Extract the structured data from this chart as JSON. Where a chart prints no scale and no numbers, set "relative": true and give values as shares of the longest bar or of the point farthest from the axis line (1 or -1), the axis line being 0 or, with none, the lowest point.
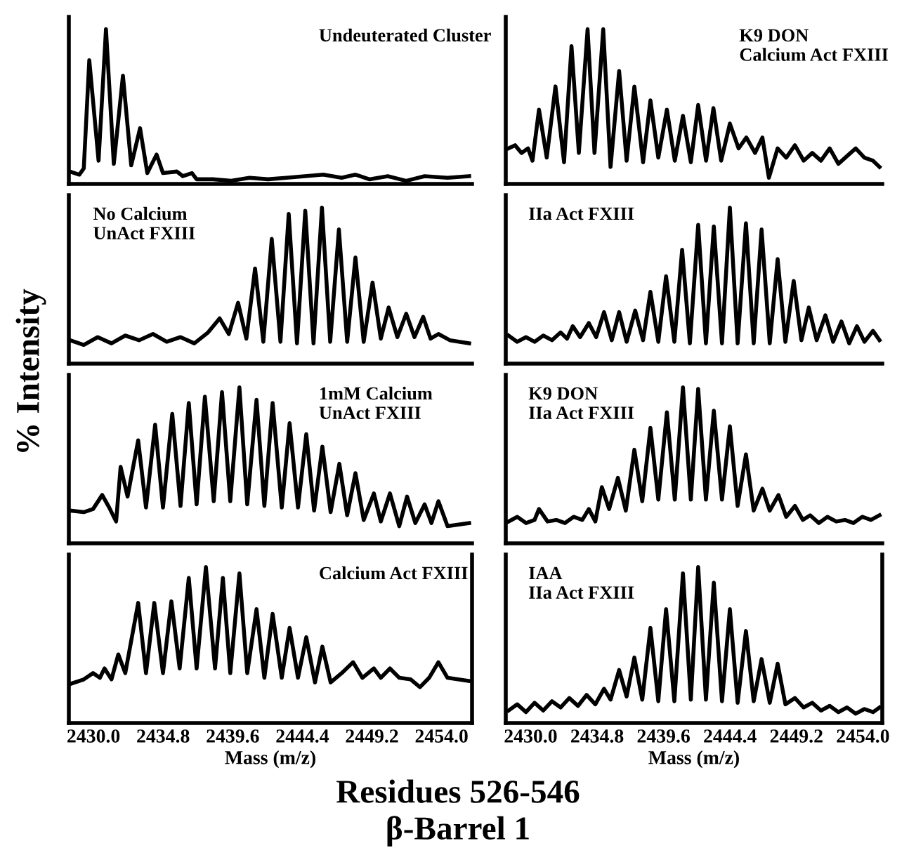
{
  "chart_data": [
    {
      "type": "line",
      "relative": true,
      "title": "Residues 526-546",
      "subtitle": "β-Barrel 1",
      "ylabel": "% Intensity",
      "annotations": [
        "Undeuterated Cluster"
      ],
      "tick_labels": false,
      "color": "#000000",
      "xlim": [
        2428.3,
        2456.1
      ],
      "x": [
        2428.38,
        2429.02,
        2429.33,
        2429.71,
        2430.35,
        2430.86,
        2431.4,
        2432.03,
        2432.6,
        2433.21,
        2433.71,
        2434.35,
        2434.79,
        2435.75,
        2436.16,
        2436.79,
        2437.11,
        2438.22,
        2439.49,
        2440.76,
        2442.03,
        2443.3,
        2444.57,
        2445.84,
        2447.11,
        2448.06,
        2449.02,
        2450.29,
        2451.56,
        2452.83,
        2454.41,
        2455.9
      ],
      "values": [
        0.08,
        0.06,
        0.1,
        0.8,
        0.15,
        1.0,
        0.13,
        0.7,
        0.12,
        0.36,
        0.07,
        0.19,
        0.07,
        0.08,
        0.05,
        0.07,
        0.03,
        0.03,
        0.02,
        0.04,
        0.03,
        0.04,
        0.05,
        0.06,
        0.04,
        0.06,
        0.03,
        0.05,
        0.02,
        0.05,
        0.04,
        0.05
      ]
    },
    {
      "type": "line",
      "relative": true,
      "annotations": [
        "K9 DON\nCalcium Act FXIII"
      ],
      "tick_labels": false,
      "color": "#000000",
      "xlim": [
        2428.2,
        2455.4
      ],
      "x": [
        2428.4,
        2428.87,
        2429.34,
        2429.81,
        2430.13,
        2430.6,
        2431.16,
        2431.79,
        2432.41,
        2432.95,
        2433.48,
        2434.11,
        2434.61,
        2435.24,
        2435.77,
        2436.39,
        2436.93,
        2437.49,
        2438.12,
        2438.65,
        2439.22,
        2439.84,
        2440.41,
        2441.0,
        2441.57,
        2442.1,
        2442.67,
        2443.2,
        2443.76,
        2444.39,
        2445.02,
        2445.58,
        2446.21,
        2446.74,
        2447.21,
        2447.84,
        2448.46,
        2449.09,
        2449.72,
        2450.34,
        2450.97,
        2451.6,
        2452.23,
        2452.85,
        2453.48,
        2454.11,
        2454.73,
        2455.2
      ],
      "values": [
        0.23,
        0.25,
        0.2,
        0.23,
        0.15,
        0.48,
        0.17,
        0.63,
        0.14,
        0.89,
        0.2,
        1.0,
        0.2,
        1.0,
        0.11,
        0.73,
        0.15,
        0.63,
        0.14,
        0.54,
        0.17,
        0.48,
        0.15,
        0.44,
        0.14,
        0.51,
        0.15,
        0.49,
        0.15,
        0.39,
        0.23,
        0.3,
        0.2,
        0.3,
        0.04,
        0.23,
        0.17,
        0.25,
        0.15,
        0.2,
        0.15,
        0.23,
        0.13,
        0.18,
        0.23,
        0.17,
        0.15,
        0.11
      ]
    },
    {
      "type": "line",
      "relative": true,
      "annotations": [
        "No Calcium\nUnAct FXIII"
      ],
      "tick_labels": false,
      "color": "#000000",
      "xlim": [
        2428.3,
        2456.1
      ],
      "x": [
        2428.38,
        2429.33,
        2430.29,
        2431.24,
        2432.19,
        2433.14,
        2434.1,
        2435.05,
        2436.0,
        2436.95,
        2437.9,
        2438.7,
        2439.33,
        2439.97,
        2440.54,
        2441.14,
        2441.71,
        2442.29,
        2442.89,
        2443.46,
        2444.03,
        2444.6,
        2445.17,
        2445.75,
        2446.32,
        2446.92,
        2447.49,
        2448.06,
        2448.63,
        2449.24,
        2449.81,
        2450.35,
        2450.95,
        2451.56,
        2452.13,
        2452.73,
        2453.24,
        2453.78,
        2454.57,
        2455.9
      ],
      "values": [
        0.15,
        0.12,
        0.17,
        0.13,
        0.18,
        0.15,
        0.19,
        0.14,
        0.17,
        0.13,
        0.2,
        0.29,
        0.19,
        0.39,
        0.16,
        0.61,
        0.14,
        0.8,
        0.14,
        0.96,
        0.13,
        0.98,
        0.13,
        1.0,
        0.14,
        0.86,
        0.14,
        0.68,
        0.14,
        0.52,
        0.16,
        0.36,
        0.17,
        0.32,
        0.17,
        0.3,
        0.16,
        0.19,
        0.15,
        0.13
      ]
    },
    {
      "type": "line",
      "relative": true,
      "annotations": [
        "IIa Act FXIII"
      ],
      "tick_labels": false,
      "color": "#000000",
      "xlim": [
        2428.2,
        2455.4
      ],
      "x": [
        2428.4,
        2429.03,
        2429.66,
        2430.28,
        2430.91,
        2431.54,
        2432.16,
        2432.63,
        2433.04,
        2433.57,
        2434.2,
        2434.73,
        2435.3,
        2435.86,
        2436.39,
        2436.93,
        2437.55,
        2438.12,
        2438.65,
        2439.22,
        2439.78,
        2440.38,
        2440.94,
        2441.5,
        2442.1,
        2442.66,
        2443.23,
        2443.82,
        2444.39,
        2444.95,
        2445.55,
        2446.11,
        2446.68,
        2447.27,
        2447.84,
        2448.4,
        2449.0,
        2449.56,
        2450.09,
        2450.66,
        2451.29,
        2451.85,
        2452.45,
        2453.01,
        2453.57,
        2454.11,
        2454.73,
        2455.2
      ],
      "values": [
        0.18,
        0.14,
        0.17,
        0.14,
        0.18,
        0.15,
        0.2,
        0.16,
        0.24,
        0.17,
        0.26,
        0.17,
        0.33,
        0.15,
        0.33,
        0.14,
        0.34,
        0.15,
        0.46,
        0.14,
        0.56,
        0.14,
        0.73,
        0.13,
        0.89,
        0.13,
        0.88,
        0.13,
        1.0,
        0.13,
        0.9,
        0.13,
        0.86,
        0.13,
        0.67,
        0.14,
        0.53,
        0.15,
        0.36,
        0.15,
        0.31,
        0.14,
        0.27,
        0.13,
        0.24,
        0.14,
        0.21,
        0.15
      ]
    },
    {
      "type": "line",
      "relative": true,
      "annotations": [
        "1mM Calcium\nUnAct FXIII"
      ],
      "tick_labels": false,
      "color": "#000000",
      "xlim": [
        2428.3,
        2456.1
      ],
      "x": [
        2428.38,
        2429.33,
        2429.97,
        2430.6,
        2431.08,
        2431.56,
        2431.87,
        2432.35,
        2433.08,
        2433.62,
        2434.25,
        2434.79,
        2435.43,
        2436.0,
        2436.57,
        2437.11,
        2437.68,
        2438.29,
        2438.86,
        2439.43,
        2440.06,
        2440.6,
        2441.24,
        2441.78,
        2442.35,
        2442.98,
        2443.52,
        2444.1,
        2444.67,
        2445.21,
        2445.78,
        2446.35,
        2446.95,
        2447.49,
        2448.06,
        2448.63,
        2449.33,
        2449.81,
        2450.44,
        2451.08,
        2451.62,
        2452.19,
        2452.83,
        2453.3,
        2453.78,
        2454.41,
        2455.9
      ],
      "values": [
        0.21,
        0.2,
        0.22,
        0.31,
        0.23,
        0.14,
        0.49,
        0.3,
        0.66,
        0.23,
        0.76,
        0.23,
        0.83,
        0.24,
        0.9,
        0.25,
        0.94,
        0.27,
        0.97,
        0.27,
        1.0,
        0.25,
        0.92,
        0.24,
        0.9,
        0.23,
        0.77,
        0.23,
        0.7,
        0.21,
        0.62,
        0.2,
        0.51,
        0.18,
        0.45,
        0.15,
        0.32,
        0.14,
        0.32,
        0.11,
        0.3,
        0.13,
        0.25,
        0.13,
        0.27,
        0.11,
        0.13
      ]
    },
    {
      "type": "line",
      "relative": true,
      "annotations": [
        "K9 DON\nIIa Act FXIII"
      ],
      "tick_labels": false,
      "color": "#000000",
      "xlim": [
        2428.2,
        2455.4
      ],
      "x": [
        2428.4,
        2429.03,
        2429.66,
        2430.28,
        2430.6,
        2431.22,
        2431.85,
        2432.48,
        2433.1,
        2433.73,
        2434.2,
        2434.67,
        2435.14,
        2435.67,
        2436.3,
        2436.87,
        2437.49,
        2438.06,
        2438.65,
        2439.22,
        2439.84,
        2440.41,
        2441.0,
        2441.57,
        2442.1,
        2442.66,
        2443.23,
        2443.82,
        2444.39,
        2444.95,
        2445.55,
        2446.11,
        2446.74,
        2447.27,
        2447.9,
        2448.46,
        2449.09,
        2449.66,
        2450.19,
        2450.82,
        2451.44,
        2452.07,
        2452.7,
        2453.32,
        2453.95,
        2454.58,
        2455.2
      ],
      "values": [
        0.14,
        0.17,
        0.13,
        0.15,
        0.22,
        0.14,
        0.15,
        0.13,
        0.17,
        0.15,
        0.22,
        0.14,
        0.36,
        0.22,
        0.42,
        0.21,
        0.6,
        0.27,
        0.74,
        0.28,
        0.84,
        0.28,
        1.0,
        0.28,
        0.99,
        0.28,
        0.85,
        0.28,
        0.75,
        0.24,
        0.57,
        0.21,
        0.35,
        0.21,
        0.31,
        0.17,
        0.24,
        0.15,
        0.18,
        0.13,
        0.17,
        0.14,
        0.15,
        0.13,
        0.17,
        0.15,
        0.18
      ]
    },
    {
      "type": "line",
      "relative": true,
      "xlabel": "Mass (m/z)",
      "annotations": [
        "Calcium Act FXIII"
      ],
      "tick_labels": "x",
      "color": "#000000",
      "xlim": [
        2428.3,
        2456.1
      ],
      "xticks": [
        {
          "value": 2430.0,
          "label": "2430.0"
        },
        {
          "value": 2434.8,
          "label": "2434.8"
        },
        {
          "value": 2439.6,
          "label": "2439.6"
        },
        {
          "value": 2444.4,
          "label": "2444.4"
        },
        {
          "value": 2449.2,
          "label": "2449.2"
        },
        {
          "value": 2454.0,
          "label": "2454.0"
        }
      ],
      "x": [
        2428.38,
        2429.33,
        2429.97,
        2430.44,
        2430.76,
        2431.24,
        2431.71,
        2432.19,
        2433.08,
        2433.62,
        2434.19,
        2434.79,
        2435.37,
        2435.94,
        2436.57,
        2437.11,
        2437.75,
        2438.38,
        2438.92,
        2439.43,
        2440.06,
        2440.6,
        2441.24,
        2441.78,
        2442.35,
        2442.98,
        2443.52,
        2444.1,
        2444.67,
        2445.27,
        2445.78,
        2446.35,
        2447.11,
        2447.9,
        2448.54,
        2449.33,
        2449.81,
        2450.44,
        2451.08,
        2451.87,
        2452.51,
        2453.14,
        2453.78,
        2454.41,
        2455.9
      ],
      "values": [
        0.25,
        0.28,
        0.32,
        0.29,
        0.35,
        0.28,
        0.44,
        0.32,
        0.77,
        0.32,
        0.77,
        0.32,
        0.78,
        0.35,
        0.93,
        0.35,
        1.0,
        0.35,
        0.93,
        0.32,
        0.96,
        0.32,
        0.73,
        0.29,
        0.7,
        0.29,
        0.61,
        0.29,
        0.55,
        0.26,
        0.49,
        0.26,
        0.32,
        0.39,
        0.29,
        0.35,
        0.29,
        0.35,
        0.29,
        0.28,
        0.23,
        0.29,
        0.39,
        0.29,
        0.27
      ]
    },
    {
      "type": "line",
      "relative": true,
      "xlabel": "Mass (m/z)",
      "annotations": [
        "IAA\nIIa Act FXIII"
      ],
      "tick_labels": "x",
      "color": "#000000",
      "xlim": [
        2428.2,
        2455.4
      ],
      "xticks": [
        {
          "value": 2430.0,
          "label": "2430.0"
        },
        {
          "value": 2434.8,
          "label": "2434.8"
        },
        {
          "value": 2439.6,
          "label": "2439.6"
        },
        {
          "value": 2444.4,
          "label": "2444.4"
        },
        {
          "value": 2449.2,
          "label": "2449.2"
        },
        {
          "value": 2454.0,
          "label": "2454.0"
        }
      ],
      "x": [
        2428.4,
        2429.03,
        2429.66,
        2430.28,
        2430.91,
        2431.54,
        2432.16,
        2432.79,
        2433.42,
        2434.04,
        2434.67,
        2435.3,
        2435.77,
        2436.39,
        2436.93,
        2437.49,
        2438.06,
        2438.65,
        2439.22,
        2439.78,
        2440.38,
        2441.0,
        2441.57,
        2442.1,
        2442.66,
        2443.23,
        2443.82,
        2444.39,
        2444.95,
        2445.55,
        2446.11,
        2446.68,
        2447.27,
        2447.84,
        2448.4,
        2449.09,
        2449.72,
        2450.34,
        2450.97,
        2451.6,
        2452.23,
        2452.85,
        2453.48,
        2454.11,
        2454.73,
        2455.2
      ],
      "values": [
        0.08,
        0.12,
        0.07,
        0.13,
        0.08,
        0.14,
        0.1,
        0.16,
        0.11,
        0.18,
        0.12,
        0.22,
        0.15,
        0.34,
        0.17,
        0.42,
        0.15,
        0.61,
        0.14,
        0.73,
        0.14,
        0.96,
        0.15,
        1.0,
        0.15,
        0.9,
        0.14,
        0.73,
        0.13,
        0.59,
        0.14,
        0.41,
        0.13,
        0.38,
        0.12,
        0.16,
        0.1,
        0.13,
        0.08,
        0.11,
        0.07,
        0.1,
        0.06,
        0.09,
        0.07,
        0.1
      ]
    }
  ]
}
